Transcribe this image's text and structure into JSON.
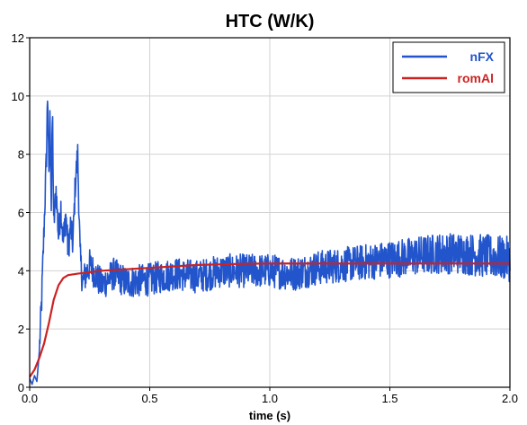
{
  "chart_data": {
    "type": "line",
    "title": "HTC (W/K)",
    "xlabel": "time (s)",
    "ylabel": "",
    "xlim": [
      0,
      2.0
    ],
    "ylim": [
      0,
      12
    ],
    "x_ticks": [
      "0.0",
      "0.5",
      "1.0",
      "1.5",
      "2.0"
    ],
    "y_ticks": [
      "0",
      "2",
      "4",
      "6",
      "8",
      "10",
      "12"
    ],
    "grid": true,
    "legend_position": "top-right",
    "series": [
      {
        "name": "nFX",
        "color": "#2255cc",
        "points": [
          [
            0.0,
            0.3
          ],
          [
            0.01,
            0.1
          ],
          [
            0.02,
            0.4
          ],
          [
            0.03,
            0.2
          ],
          [
            0.04,
            1.2
          ],
          [
            0.05,
            3.0
          ],
          [
            0.06,
            5.5
          ],
          [
            0.07,
            8.0
          ],
          [
            0.075,
            10.3
          ],
          [
            0.08,
            7.0
          ],
          [
            0.085,
            9.5
          ],
          [
            0.09,
            6.2
          ],
          [
            0.095,
            9.6
          ],
          [
            0.1,
            5.5
          ],
          [
            0.11,
            6.8
          ],
          [
            0.12,
            5.2
          ],
          [
            0.13,
            6.2
          ],
          [
            0.14,
            5.0
          ],
          [
            0.15,
            6.0
          ],
          [
            0.16,
            4.7
          ],
          [
            0.17,
            5.5
          ],
          [
            0.18,
            4.9
          ],
          [
            0.19,
            7.0
          ],
          [
            0.2,
            8.0
          ],
          [
            0.21,
            4.5
          ],
          [
            0.22,
            3.6
          ],
          [
            0.25,
            4.2
          ],
          [
            0.3,
            3.5
          ],
          [
            0.35,
            3.9
          ],
          [
            0.4,
            3.6
          ],
          [
            0.5,
            3.7
          ],
          [
            0.6,
            3.9
          ],
          [
            0.7,
            3.8
          ],
          [
            0.8,
            4.0
          ],
          [
            0.9,
            4.0
          ],
          [
            1.0,
            4.0
          ],
          [
            1.1,
            3.9
          ],
          [
            1.2,
            4.1
          ],
          [
            1.3,
            4.2
          ],
          [
            1.4,
            4.3
          ],
          [
            1.5,
            4.4
          ],
          [
            1.6,
            4.5
          ],
          [
            1.7,
            4.6
          ],
          [
            1.8,
            4.6
          ],
          [
            1.9,
            4.5
          ],
          [
            2.0,
            4.4
          ]
        ]
      },
      {
        "name": "romAl",
        "color": "#cc2222",
        "points": [
          [
            0.0,
            0.35
          ],
          [
            0.02,
            0.6
          ],
          [
            0.04,
            1.0
          ],
          [
            0.06,
            1.5
          ],
          [
            0.08,
            2.2
          ],
          [
            0.1,
            3.0
          ],
          [
            0.12,
            3.5
          ],
          [
            0.14,
            3.75
          ],
          [
            0.16,
            3.85
          ],
          [
            0.2,
            3.9
          ],
          [
            0.3,
            4.0
          ],
          [
            0.4,
            4.05
          ],
          [
            0.5,
            4.1
          ],
          [
            0.6,
            4.15
          ],
          [
            0.7,
            4.2
          ],
          [
            0.8,
            4.22
          ],
          [
            0.9,
            4.24
          ],
          [
            1.0,
            4.25
          ],
          [
            1.2,
            4.25
          ],
          [
            1.4,
            4.25
          ],
          [
            1.6,
            4.25
          ],
          [
            1.8,
            4.25
          ],
          [
            2.0,
            4.25
          ]
        ]
      }
    ]
  }
}
